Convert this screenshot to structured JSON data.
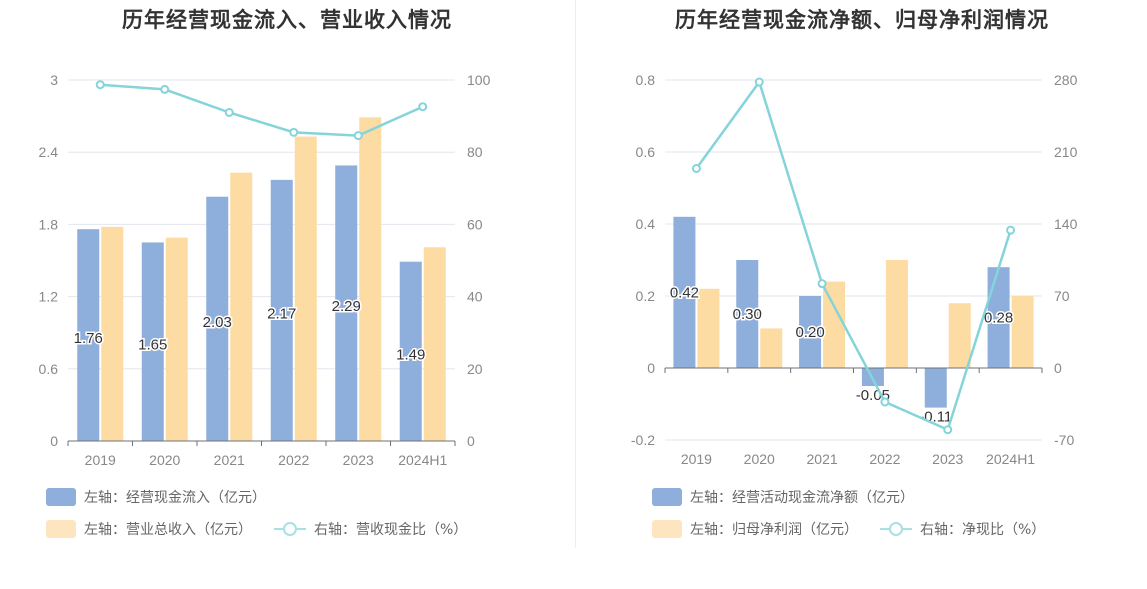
{
  "colors": {
    "bar_primary": "#8eaedc",
    "bar_secondary": "#fddca3",
    "line": "#84d4da",
    "axis_text": "#888888",
    "grid": "#e3e6ee"
  },
  "chart_data": [
    {
      "type": "bar",
      "title": "历年经营现金流入、营业收入情况",
      "categories": [
        "2019",
        "2020",
        "2021",
        "2022",
        "2023",
        "2024H1"
      ],
      "series": [
        {
          "name": "左轴：经营现金流入（亿元）",
          "axis": "left",
          "type": "bar",
          "values": [
            1.76,
            1.65,
            2.03,
            2.17,
            2.29,
            1.49
          ]
        },
        {
          "name": "左轴：营业总收入（亿元）",
          "axis": "left",
          "type": "bar",
          "values": [
            1.78,
            1.69,
            2.23,
            2.53,
            2.69,
            1.61
          ]
        },
        {
          "name": "右轴：营收现金比（%）",
          "axis": "right",
          "type": "line",
          "values": [
            98.7,
            97.4,
            91.0,
            85.5,
            84.6,
            92.6
          ]
        }
      ],
      "data_labels": [
        "1.76",
        "1.65",
        "2.03",
        "2.17",
        "2.29",
        "1.49"
      ],
      "left_axis": {
        "ticks": [
          "0",
          "0.6",
          "1.2",
          "1.8",
          "2.4",
          "3"
        ],
        "ylim": [
          0,
          3
        ]
      },
      "right_axis": {
        "ticks": [
          "0",
          "20",
          "40",
          "60",
          "80",
          "100"
        ],
        "ylim": [
          0,
          100
        ]
      },
      "grid": true,
      "legend": "bottom-left"
    },
    {
      "type": "bar",
      "title": "历年经营现金流净额、归母净利润情况",
      "categories": [
        "2019",
        "2020",
        "2021",
        "2022",
        "2023",
        "2024H1"
      ],
      "series": [
        {
          "name": "左轴：经营活动现金流净额（亿元）",
          "axis": "left",
          "type": "bar",
          "values": [
            0.42,
            0.3,
            0.2,
            -0.05,
            -0.11,
            0.28
          ]
        },
        {
          "name": "左轴：归母净利润（亿元）",
          "axis": "left",
          "type": "bar",
          "values": [
            0.22,
            0.11,
            0.24,
            0.3,
            0.18,
            0.2
          ]
        },
        {
          "name": "右轴：净现比（%）",
          "axis": "right",
          "type": "line",
          "values": [
            194,
            278,
            82,
            -33,
            -60,
            134
          ]
        }
      ],
      "data_labels": [
        "0.42",
        "0.30",
        "0.20",
        "-0.05",
        "-0.11",
        "0.28"
      ],
      "left_axis": {
        "ticks": [
          "-0.2",
          "0",
          "0.2",
          "0.4",
          "0.6",
          "0.8"
        ],
        "ylim": [
          -0.2,
          0.8
        ]
      },
      "right_axis": {
        "ticks": [
          "-70",
          "0",
          "70",
          "140",
          "210",
          "280"
        ],
        "ylim": [
          -70,
          280
        ]
      },
      "grid": true,
      "legend": "bottom-left"
    }
  ]
}
